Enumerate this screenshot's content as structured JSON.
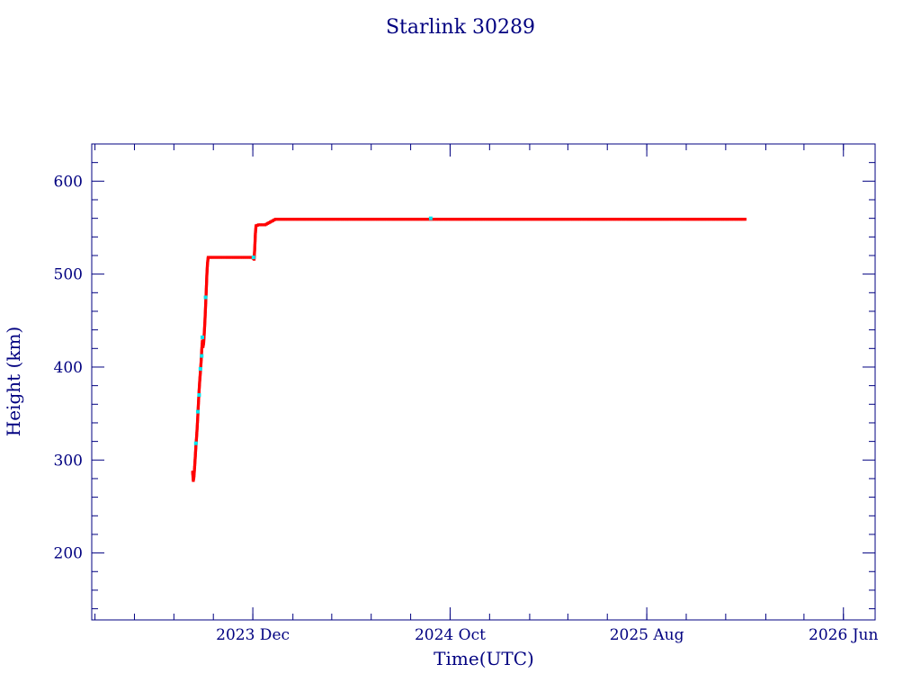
{
  "colors": {
    "axis": "#000080",
    "text": "#000080",
    "line": "#800000",
    "marker": "#ff0000",
    "marker_alt": "#00e5ee",
    "background": "#ffffff"
  },
  "chart_data": {
    "type": "scatter",
    "title": "Starlink 30289",
    "xlabel": "Time(UTC)",
    "ylabel": "Height (km)",
    "xlim": [
      "2023-03-27",
      "2026-07-20"
    ],
    "ylim": [
      128,
      640
    ],
    "x_ticks": [
      {
        "date": "2023-12-01",
        "label": "2023 Dec"
      },
      {
        "date": "2024-10-01",
        "label": "2024 Oct"
      },
      {
        "date": "2025-08-01",
        "label": "2025 Aug"
      },
      {
        "date": "2026-06-01",
        "label": "2026 Jun"
      }
    ],
    "y_ticks": [
      200,
      300,
      400,
      500,
      600
    ],
    "grid": false,
    "legend": "none",
    "series": [
      {
        "points": [
          [
            "2023-08-30",
            287
          ],
          [
            "2023-08-31",
            278
          ],
          [
            "2023-09-01",
            282
          ],
          [
            "2023-09-02",
            292
          ],
          [
            "2023-09-03",
            303
          ],
          [
            "2023-09-04",
            315
          ],
          [
            "2023-09-05",
            324
          ],
          [
            "2023-09-06",
            335
          ],
          [
            "2023-09-07",
            348
          ],
          [
            "2023-09-08",
            362
          ],
          [
            "2023-09-09",
            375
          ],
          [
            "2023-09-10",
            386
          ],
          [
            "2023-09-11",
            395
          ],
          [
            "2023-09-12",
            405
          ],
          [
            "2023-09-13",
            418
          ],
          [
            "2023-09-14",
            428
          ],
          [
            "2023-09-15",
            422
          ],
          [
            "2023-09-16",
            426
          ],
          [
            "2023-09-17",
            437
          ],
          [
            "2023-09-18",
            450
          ],
          [
            "2023-09-19",
            466
          ],
          [
            "2023-09-20",
            482
          ],
          [
            "2023-09-21",
            500
          ],
          [
            "2023-09-22",
            512
          ],
          [
            "2023-09-23",
            518
          ],
          [
            "2023-10-01",
            518
          ],
          [
            "2023-10-10",
            518
          ],
          [
            "2023-10-20",
            518
          ],
          [
            "2023-11-01",
            518
          ],
          [
            "2023-11-10",
            518
          ],
          [
            "2023-11-20",
            518
          ],
          [
            "2023-11-30",
            518
          ],
          [
            "2023-12-03",
            516
          ],
          [
            "2023-12-04",
            528
          ],
          [
            "2023-12-05",
            544
          ],
          [
            "2023-12-06",
            552
          ],
          [
            "2023-12-10",
            553
          ],
          [
            "2023-12-20",
            553
          ],
          [
            "2023-12-28",
            556
          ],
          [
            "2024-01-05",
            559
          ],
          [
            "2024-02-01",
            559
          ],
          [
            "2024-03-01",
            559
          ],
          [
            "2024-04-01",
            559
          ],
          [
            "2024-05-01",
            559
          ],
          [
            "2024-06-01",
            559
          ],
          [
            "2024-07-01",
            559
          ],
          [
            "2024-08-01",
            559
          ],
          [
            "2024-09-01",
            559
          ],
          [
            "2024-10-01",
            559
          ],
          [
            "2024-11-01",
            559
          ],
          [
            "2024-12-01",
            559
          ],
          [
            "2025-01-01",
            559
          ],
          [
            "2025-02-01",
            559
          ],
          [
            "2025-03-01",
            559
          ],
          [
            "2025-04-01",
            559
          ],
          [
            "2025-05-01",
            559
          ],
          [
            "2025-06-01",
            559
          ],
          [
            "2025-07-01",
            559
          ],
          [
            "2025-08-01",
            559
          ],
          [
            "2025-09-01",
            559
          ],
          [
            "2025-10-01",
            559
          ],
          [
            "2025-11-01",
            559
          ],
          [
            "2025-12-01",
            559
          ],
          [
            "2025-12-31",
            559
          ]
        ],
        "highlight_points": [
          [
            "2023-09-04",
            318
          ],
          [
            "2023-09-07",
            352
          ],
          [
            "2023-09-09",
            370
          ],
          [
            "2023-09-11",
            398
          ],
          [
            "2023-09-13",
            412
          ],
          [
            "2023-09-14",
            432
          ],
          [
            "2023-09-19",
            475
          ],
          [
            "2023-12-02",
            518
          ],
          [
            "2024-09-01",
            560
          ]
        ]
      }
    ]
  }
}
